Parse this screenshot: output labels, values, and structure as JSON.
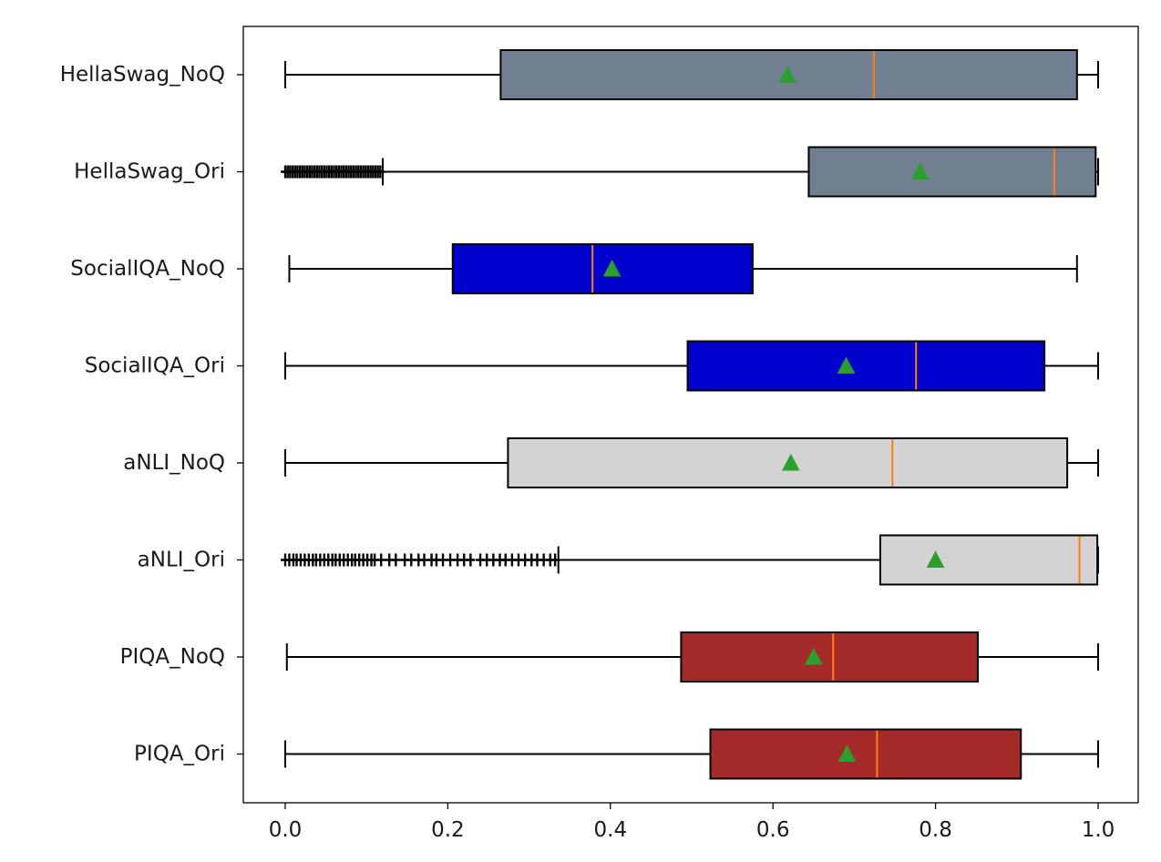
{
  "chart_data": {
    "type": "boxplot",
    "orientation": "horizontal",
    "title": "",
    "xlabel": "",
    "ylabel": "",
    "xlim": [
      -0.05,
      1.05
    ],
    "xticks": [
      0.0,
      0.2,
      0.4,
      0.6,
      0.8,
      1.0
    ],
    "xtick_labels": [
      "0.0",
      "0.2",
      "0.4",
      "0.6",
      "0.8",
      "1.0"
    ],
    "grid": false,
    "legend": "none",
    "mean_marker": "triangle",
    "mean_color": "#2ca02c",
    "median_color": "#ff7f0e",
    "categories": [
      "HellaSwag_NoQ",
      "HellaSwag_Ori",
      "SocialIQA_NoQ",
      "SocialIQA_Ori",
      "aNLI_NoQ",
      "aNLI_Ori",
      "PIQA_NoQ",
      "PIQA_Ori"
    ],
    "boxes": [
      {
        "label": "HellaSwag_NoQ",
        "whislo": 0.0,
        "q1": 0.265,
        "median": 0.724,
        "mean": 0.618,
        "q3": 0.974,
        "whishi": 1.0,
        "color": "#708090",
        "fliers": []
      },
      {
        "label": "HellaSwag_Ori",
        "whislo": 0.12,
        "q1": 0.644,
        "median": 0.946,
        "mean": 0.781,
        "q3": 0.997,
        "whishi": 1.0,
        "color": "#708090",
        "fliers": [
          0.0,
          0.003,
          0.006,
          0.009,
          0.012,
          0.015,
          0.018,
          0.021,
          0.024,
          0.027,
          0.03,
          0.033,
          0.036,
          0.039,
          0.042,
          0.045,
          0.048,
          0.051,
          0.054,
          0.057,
          0.06,
          0.063,
          0.066,
          0.069,
          0.072,
          0.075,
          0.078,
          0.081,
          0.084,
          0.087,
          0.09,
          0.093,
          0.096,
          0.099,
          0.102,
          0.105,
          0.108,
          0.111,
          0.114,
          0.117
        ]
      },
      {
        "label": "SocialIQA_NoQ",
        "whislo": 0.005,
        "q1": 0.206,
        "median": 0.378,
        "mean": 0.402,
        "q3": 0.575,
        "whishi": 0.974,
        "color": "#0000cd",
        "fliers": []
      },
      {
        "label": "SocialIQA_Ori",
        "whislo": 0.0,
        "q1": 0.495,
        "median": 0.776,
        "mean": 0.69,
        "q3": 0.934,
        "whishi": 1.0,
        "color": "#0000cd",
        "fliers": []
      },
      {
        "label": "aNLI_NoQ",
        "whislo": 0.0,
        "q1": 0.274,
        "median": 0.747,
        "mean": 0.622,
        "q3": 0.962,
        "whishi": 1.0,
        "color": "#d3d3d3",
        "fliers": []
      },
      {
        "label": "aNLI_Ori",
        "whislo": 0.336,
        "q1": 0.732,
        "median": 0.977,
        "mean": 0.8,
        "q3": 0.999,
        "whishi": 1.0,
        "color": "#d3d3d3",
        "fliers": [
          0.0,
          0.005,
          0.01,
          0.014,
          0.019,
          0.024,
          0.029,
          0.034,
          0.038,
          0.043,
          0.048,
          0.053,
          0.058,
          0.062,
          0.067,
          0.072,
          0.077,
          0.082,
          0.086,
          0.091,
          0.096,
          0.101,
          0.106,
          0.11,
          0.118,
          0.128,
          0.136,
          0.147,
          0.155,
          0.164,
          0.171,
          0.18,
          0.186,
          0.194,
          0.203,
          0.212,
          0.22,
          0.228,
          0.24,
          0.248,
          0.256,
          0.264,
          0.271,
          0.279,
          0.287,
          0.295,
          0.303,
          0.31,
          0.318,
          0.326,
          0.332
        ]
      },
      {
        "label": "PIQA_NoQ",
        "whislo": 0.002,
        "q1": 0.487,
        "median": 0.674,
        "mean": 0.65,
        "q3": 0.852,
        "whishi": 1.0,
        "color": "#a52a2a",
        "fliers": []
      },
      {
        "label": "PIQA_Ori",
        "whislo": 0.0,
        "q1": 0.523,
        "median": 0.728,
        "mean": 0.691,
        "q3": 0.905,
        "whishi": 1.0,
        "color": "#a52a2a",
        "fliers": []
      }
    ]
  }
}
